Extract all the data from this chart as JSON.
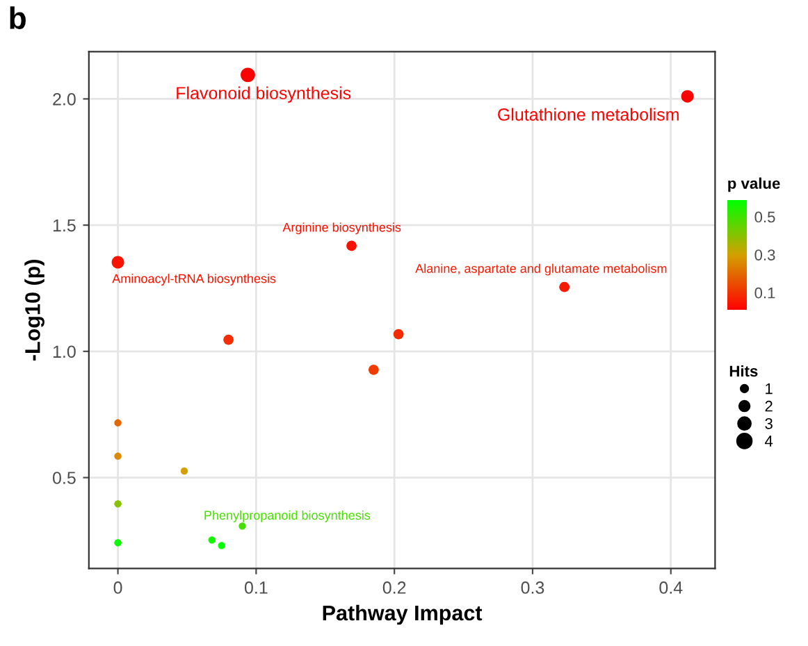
{
  "chart_data": {
    "type": "bubble",
    "title": "b",
    "xlabel": "Pathway Impact",
    "ylabel": "-Log10 (p)",
    "clabel": "p value",
    "legend_title": "Hits",
    "x": [
      0.094,
      0.412,
      0,
      0.169,
      0.323,
      0.08,
      0.203,
      0.185,
      0,
      0,
      0,
      0,
      0.048,
      0.09,
      0.068,
      0.075
    ],
    "values": [
      2.095,
      2.01,
      1.353,
      1.418,
      1.255,
      1.046,
      1.068,
      0.927,
      0.717,
      0.585,
      0.396,
      0.242,
      0.526,
      0.308,
      0.253,
      0.231
    ],
    "sizes": [
      4,
      3,
      3,
      2,
      2,
      2,
      2,
      2,
      1,
      1,
      1,
      1,
      1,
      1,
      1,
      1
    ],
    "size_legend": [
      1,
      2,
      3,
      4
    ],
    "cvalues": [
      0.008,
      0.0098,
      0.044,
      0.038,
      0.056,
      0.09,
      0.086,
      0.118,
      0.192,
      0.26,
      0.402,
      0.573,
      0.298,
      0.492,
      0.558,
      0.587
    ],
    "clim": [
      0.008,
      0.587
    ],
    "cticks": [
      0.1,
      0.3,
      0.5
    ],
    "xlim": [
      -0.021,
      0.432
    ],
    "xticks": [
      0,
      0.1,
      0.2,
      0.3,
      0.4
    ],
    "ylim": [
      0.14,
      2.187
    ],
    "yticks": [
      0.5,
      {
        "value": 1,
        "label": "1.0"
      },
      1.5,
      {
        "value": 2,
        "label": "2.0"
      }
    ],
    "grid": true,
    "marker": "circle",
    "annotations": [
      {
        "text": "Flavonoid biosynthesis",
        "x": 0.094,
        "y": 2.095
      },
      {
        "text": "Glutathione metabolism",
        "x": 0.412,
        "y": 2.01
      },
      {
        "text": "Arginine biosynthesis",
        "x": 0.169,
        "y": 1.418
      },
      {
        "text": "Aminoacyl-tRNA biosynthesis",
        "x": 0,
        "y": 1.353
      },
      {
        "text": "Alanine, aspartate and glutamate metabolism",
        "x": 0.323,
        "y": 1.255
      },
      {
        "text": "Phenylpropanoid biosynthesis",
        "x": 0.09,
        "y": 0.308
      }
    ]
  }
}
